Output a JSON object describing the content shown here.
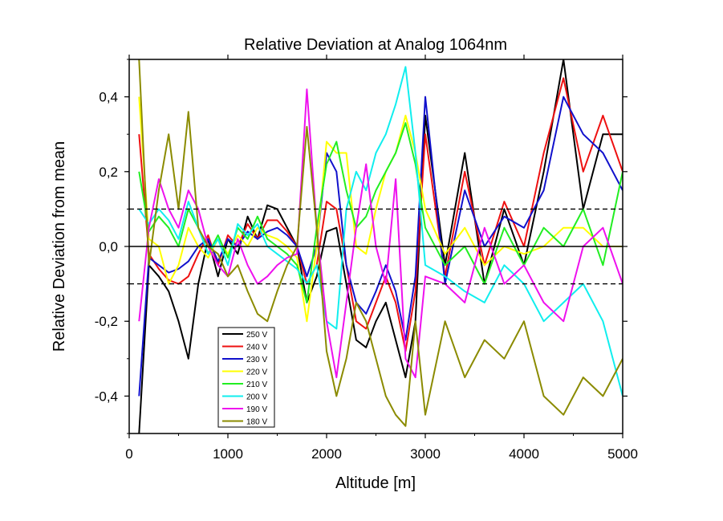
{
  "chart_data": {
    "type": "line",
    "title": "Relative Deviation at Analog 1064nm",
    "xlabel": "Altitude [m]",
    "ylabel": "Relative Deviation from mean",
    "xlim": [
      0,
      5000
    ],
    "ylim": [
      -0.5,
      0.5
    ],
    "x_ticks": [
      0,
      1000,
      2000,
      3000,
      4000,
      5000
    ],
    "x_tick_labels": [
      "0",
      "1000",
      "2000",
      "3000",
      "4000",
      "5000"
    ],
    "y_ticks": [
      -0.4,
      -0.2,
      0.0,
      0.2,
      0.4
    ],
    "y_tick_labels": [
      "-0,4",
      "-0,2",
      "0,0",
      "0,2",
      "0,4"
    ],
    "reference_lines": [
      {
        "y": 0.1,
        "style": "dashed"
      },
      {
        "y": 0.0,
        "style": "solid"
      },
      {
        "y": -0.1,
        "style": "dashed"
      }
    ],
    "grid": false,
    "legend_position": "bottom-left",
    "series": [
      {
        "name": "250 V",
        "color": "#000000",
        "x": [
          100,
          200,
          300,
          400,
          500,
          600,
          700,
          800,
          900,
          1000,
          1100,
          1200,
          1300,
          1400,
          1500,
          1600,
          1700,
          1800,
          1900,
          2000,
          2100,
          2200,
          2300,
          2400,
          2500,
          2600,
          2700,
          2800,
          2900,
          3000,
          3200,
          3400,
          3600,
          3800,
          4000,
          4200,
          4400,
          4600,
          4800,
          5000
        ],
        "y": [
          -0.5,
          -0.05,
          -0.08,
          -0.12,
          -0.2,
          -0.3,
          -0.1,
          0.02,
          -0.08,
          0.02,
          -0.02,
          0.08,
          0.02,
          0.11,
          0.1,
          0.05,
          0.0,
          -0.15,
          -0.08,
          0.04,
          0.05,
          -0.1,
          -0.25,
          -0.27,
          -0.2,
          -0.15,
          -0.25,
          -0.35,
          -0.2,
          0.35,
          -0.05,
          0.25,
          -0.1,
          0.1,
          -0.05,
          0.2,
          0.5,
          0.1,
          0.3,
          0.3
        ]
      },
      {
        "name": "240 V",
        "color": "#ee1111",
        "x": [
          100,
          200,
          300,
          400,
          500,
          600,
          700,
          800,
          900,
          1000,
          1100,
          1200,
          1300,
          1400,
          1500,
          1600,
          1700,
          1800,
          1900,
          2000,
          2100,
          2200,
          2300,
          2400,
          2500,
          2600,
          2700,
          2800,
          2900,
          3000,
          3200,
          3400,
          3600,
          3800,
          4000,
          4200,
          4400,
          4600,
          4800,
          5000
        ],
        "y": [
          0.3,
          -0.02,
          -0.06,
          -0.09,
          -0.1,
          -0.08,
          -0.02,
          0.03,
          -0.05,
          0.03,
          0.0,
          0.06,
          0.02,
          0.07,
          0.07,
          0.04,
          0.0,
          -0.1,
          -0.05,
          0.12,
          0.1,
          -0.05,
          -0.2,
          -0.22,
          -0.15,
          -0.08,
          -0.15,
          -0.28,
          -0.12,
          0.3,
          -0.08,
          0.2,
          -0.05,
          0.12,
          0.0,
          0.25,
          0.45,
          0.2,
          0.35,
          0.2
        ]
      },
      {
        "name": "230 V",
        "color": "#1111cc",
        "x": [
          100,
          200,
          300,
          400,
          500,
          600,
          700,
          800,
          900,
          1000,
          1100,
          1200,
          1300,
          1400,
          1500,
          1600,
          1700,
          1800,
          1900,
          2000,
          2100,
          2200,
          2300,
          2400,
          2500,
          2600,
          2700,
          2800,
          2900,
          3000,
          3200,
          3400,
          3600,
          3800,
          4000,
          4200,
          4400,
          4600,
          4800,
          5000
        ],
        "y": [
          -0.4,
          -0.03,
          -0.05,
          -0.07,
          -0.06,
          -0.04,
          0.0,
          0.02,
          -0.04,
          0.02,
          0.0,
          0.04,
          0.02,
          0.04,
          0.05,
          0.03,
          0.0,
          -0.08,
          0.0,
          0.25,
          0.2,
          -0.05,
          -0.15,
          -0.18,
          -0.12,
          -0.05,
          -0.12,
          -0.25,
          -0.08,
          0.4,
          -0.1,
          0.15,
          0.0,
          0.08,
          0.05,
          0.15,
          0.4,
          0.3,
          0.25,
          0.15
        ]
      },
      {
        "name": "220 V",
        "color": "#ffff00",
        "x": [
          100,
          200,
          300,
          400,
          500,
          600,
          700,
          800,
          900,
          1000,
          1100,
          1200,
          1300,
          1400,
          1500,
          1600,
          1700,
          1800,
          1900,
          2000,
          2100,
          2200,
          2300,
          2400,
          2500,
          2600,
          2700,
          2800,
          2900,
          3000,
          3200,
          3400,
          3600,
          3800,
          4000,
          4200,
          4400,
          4600,
          4800,
          5000
        ],
        "y": [
          0.4,
          0.02,
          0.0,
          -0.1,
          -0.05,
          0.05,
          0.0,
          -0.03,
          0.02,
          -0.02,
          0.03,
          0.0,
          0.05,
          0.03,
          0.02,
          0.0,
          -0.03,
          -0.2,
          0.0,
          0.28,
          0.25,
          0.25,
          0.0,
          -0.02,
          0.1,
          0.2,
          0.25,
          0.35,
          0.25,
          0.1,
          -0.02,
          0.05,
          -0.05,
          0.0,
          -0.02,
          0.0,
          0.05,
          0.05,
          0.0,
          0.0
        ]
      },
      {
        "name": "210 V",
        "color": "#22ee22",
        "x": [
          100,
          200,
          300,
          400,
          500,
          600,
          700,
          800,
          900,
          1000,
          1100,
          1200,
          1300,
          1400,
          1500,
          1600,
          1700,
          1800,
          1900,
          2000,
          2100,
          2200,
          2300,
          2400,
          2500,
          2600,
          2700,
          2800,
          2900,
          3000,
          3200,
          3400,
          3600,
          3800,
          4000,
          4200,
          4400,
          4600,
          4800,
          5000
        ],
        "y": [
          0.2,
          0.04,
          0.08,
          0.05,
          0.0,
          0.1,
          0.05,
          -0.02,
          0.03,
          -0.03,
          0.05,
          0.02,
          0.08,
          0.02,
          0.0,
          -0.02,
          -0.05,
          -0.15,
          0.05,
          0.22,
          0.28,
          0.15,
          0.05,
          0.08,
          0.15,
          0.2,
          0.25,
          0.33,
          0.22,
          0.05,
          -0.05,
          0.0,
          -0.1,
          0.05,
          -0.05,
          0.05,
          0.0,
          0.1,
          -0.05,
          0.2
        ]
      },
      {
        "name": "200 V",
        "color": "#11eeee",
        "x": [
          100,
          200,
          300,
          400,
          500,
          600,
          700,
          800,
          900,
          1000,
          1100,
          1200,
          1300,
          1400,
          1500,
          1600,
          1700,
          1800,
          1900,
          2000,
          2100,
          2200,
          2300,
          2400,
          2500,
          2600,
          2700,
          2800,
          2900,
          3000,
          3200,
          3400,
          3600,
          3800,
          4000,
          4200,
          4400,
          4600,
          4800,
          5000
        ],
        "y": [
          0.1,
          0.06,
          0.1,
          0.07,
          0.02,
          0.12,
          0.05,
          -0.02,
          0.02,
          -0.05,
          0.06,
          0.03,
          0.06,
          0.0,
          -0.02,
          -0.04,
          -0.06,
          -0.1,
          -0.05,
          -0.2,
          -0.22,
          0.1,
          0.2,
          0.15,
          0.25,
          0.3,
          0.38,
          0.48,
          0.25,
          -0.05,
          -0.08,
          -0.12,
          -0.15,
          -0.05,
          -0.1,
          -0.2,
          -0.15,
          -0.1,
          -0.2,
          -0.4
        ]
      },
      {
        "name": "190 V",
        "color": "#ee11ee",
        "x": [
          100,
          200,
          300,
          400,
          500,
          600,
          700,
          800,
          900,
          1000,
          1100,
          1200,
          1300,
          1400,
          1500,
          1600,
          1700,
          1800,
          1900,
          2000,
          2100,
          2200,
          2300,
          2400,
          2500,
          2600,
          2700,
          2800,
          2900,
          3000,
          3200,
          3400,
          3600,
          3800,
          4000,
          4200,
          4400,
          4600,
          4800,
          5000
        ],
        "y": [
          -0.2,
          0.05,
          0.18,
          0.1,
          0.05,
          0.15,
          0.1,
          0.0,
          -0.05,
          -0.08,
          0.02,
          -0.05,
          -0.1,
          -0.08,
          -0.05,
          -0.03,
          -0.02,
          0.42,
          0.05,
          -0.2,
          -0.35,
          -0.15,
          0.05,
          0.22,
          0.0,
          -0.1,
          0.18,
          -0.3,
          -0.35,
          -0.08,
          -0.1,
          -0.15,
          0.05,
          -0.1,
          -0.05,
          -0.15,
          -0.2,
          0.0,
          0.05,
          -0.1
        ]
      },
      {
        "name": "180 V",
        "color": "#8b8b00",
        "x": [
          100,
          200,
          300,
          400,
          500,
          600,
          700,
          800,
          900,
          1000,
          1100,
          1200,
          1300,
          1400,
          1500,
          1600,
          1700,
          1800,
          1900,
          2000,
          2100,
          2200,
          2300,
          2400,
          2500,
          2600,
          2700,
          2800,
          2900,
          3000,
          3200,
          3400,
          3600,
          3800,
          4000,
          4200,
          4400,
          4600,
          4800,
          5000
        ],
        "y": [
          0.5,
          -0.05,
          0.15,
          0.3,
          0.1,
          0.36,
          0.05,
          0.0,
          -0.02,
          -0.08,
          -0.05,
          -0.12,
          -0.18,
          -0.2,
          -0.12,
          -0.05,
          0.0,
          0.32,
          0.05,
          -0.28,
          -0.4,
          -0.3,
          -0.15,
          -0.2,
          -0.3,
          -0.4,
          -0.45,
          -0.48,
          -0.2,
          -0.45,
          -0.2,
          -0.35,
          -0.25,
          -0.3,
          -0.2,
          -0.4,
          -0.45,
          -0.35,
          -0.4,
          -0.3
        ]
      }
    ]
  }
}
